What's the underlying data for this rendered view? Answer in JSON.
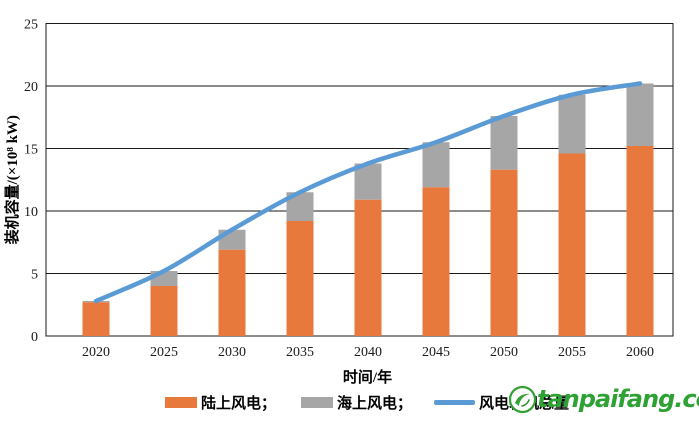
{
  "chart_data": {
    "type": "bar",
    "subtype": "stacked-bars-with-total-line",
    "title": "",
    "xlabel": "时间/年",
    "ylabel": "装机容量/(×10⁸ kW)",
    "categories": [
      "2020",
      "2025",
      "2030",
      "2035",
      "2040",
      "2045",
      "2050",
      "2055",
      "2060"
    ],
    "series": [
      {
        "name": "陆上风电",
        "type": "bar-stack",
        "color": "#E8793D",
        "values": [
          2.7,
          4.0,
          6.9,
          9.2,
          10.9,
          11.9,
          13.3,
          14.6,
          15.2
        ]
      },
      {
        "name": "海上风电",
        "type": "bar-stack",
        "color": "#A6A6A6",
        "values": [
          0.1,
          1.2,
          1.6,
          2.3,
          2.9,
          3.6,
          4.3,
          4.7,
          5.0
        ]
      },
      {
        "name": "风电装机总量",
        "type": "line",
        "color": "#5B9BD5",
        "values": [
          2.8,
          5.2,
          8.5,
          11.5,
          13.8,
          15.5,
          17.6,
          19.3,
          20.2
        ]
      }
    ],
    "ylim": [
      0,
      25
    ],
    "ytick_step": 5,
    "yticks": [
      0,
      5,
      10,
      15,
      20,
      25
    ],
    "grid": "horizontal",
    "plot_border": true,
    "legend_position": "bottom"
  },
  "legend": {
    "items": [
      {
        "label": "陆上风电；",
        "swatch": "orange-rect"
      },
      {
        "label": "海上风电；",
        "swatch": "gray-rect"
      },
      {
        "label": "风电装机总量",
        "swatch": "blue-line"
      }
    ]
  },
  "watermark": {
    "text": "tanpaifang.com",
    "color": "#2FA235"
  }
}
